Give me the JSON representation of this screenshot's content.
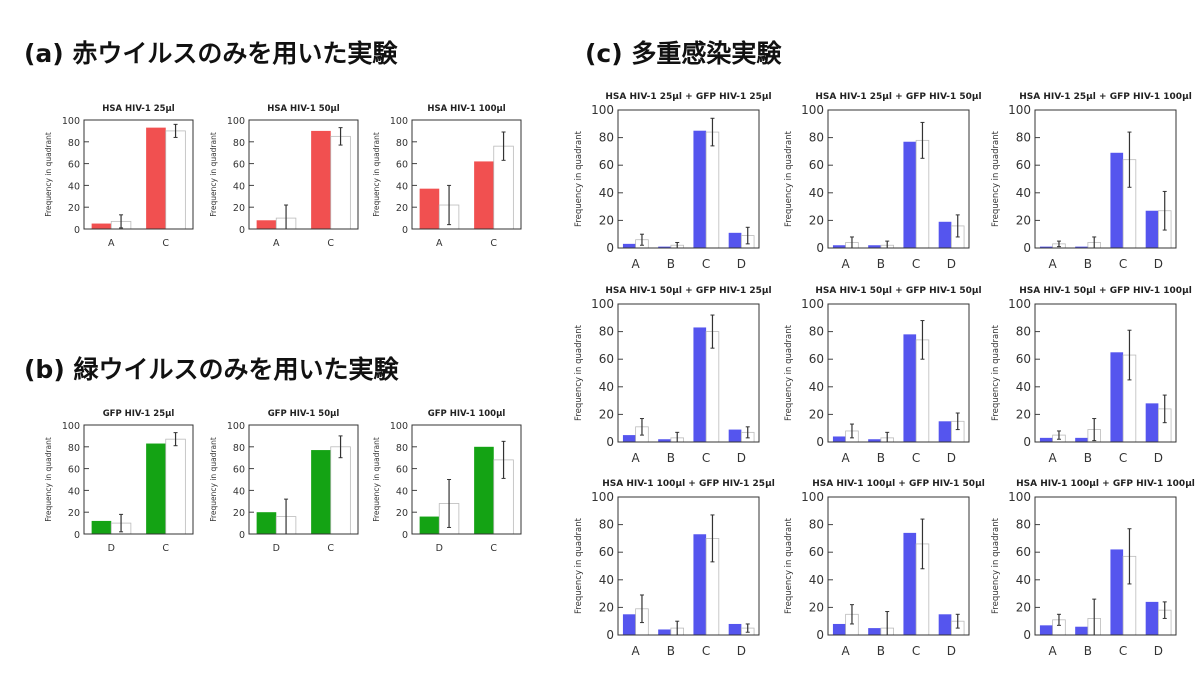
{
  "headings": {
    "a": "(a) 赤ウイルスのみを用いた実験",
    "b": "(b) 緑ウイルスのみを用いた実験",
    "c": "(c) 多重感染実験"
  },
  "colors": {
    "red": "#f15050",
    "green": "#14a314",
    "blue": "#5555ee",
    "white": "#ffffff"
  },
  "chart_data": [
    {
      "id": "a1",
      "type": "bar",
      "title": "HSA HIV-1 25μl",
      "ylabel": "Frequency in quadrant",
      "ylim": [
        0,
        100
      ],
      "yticks": [
        0,
        20,
        40,
        60,
        80,
        100
      ],
      "categories": [
        "A",
        "C"
      ],
      "color": "red",
      "series": [
        {
          "values": [
            5,
            93
          ]
        },
        {
          "values": [
            7,
            90
          ],
          "err": [
            6,
            6
          ]
        }
      ]
    },
    {
      "id": "a2",
      "type": "bar",
      "title": "HSA HIV-1 50μl",
      "ylabel": "Frequency in quadrant",
      "ylim": [
        0,
        100
      ],
      "yticks": [
        0,
        20,
        40,
        60,
        80,
        100
      ],
      "categories": [
        "A",
        "C"
      ],
      "color": "red",
      "series": [
        {
          "values": [
            8,
            90
          ]
        },
        {
          "values": [
            10,
            85
          ],
          "err": [
            12,
            8
          ]
        }
      ]
    },
    {
      "id": "a3",
      "type": "bar",
      "title": "HSA HIV-1 100μl",
      "ylabel": "Frequency in quadrant",
      "ylim": [
        0,
        100
      ],
      "yticks": [
        0,
        20,
        40,
        60,
        80,
        100
      ],
      "categories": [
        "A",
        "C"
      ],
      "color": "red",
      "series": [
        {
          "values": [
            37,
            62
          ]
        },
        {
          "values": [
            22,
            76
          ],
          "err": [
            18,
            13
          ]
        }
      ]
    },
    {
      "id": "b1",
      "type": "bar",
      "title": "GFP HIV-1 25μl",
      "ylabel": "Frequency in quadrant",
      "ylim": [
        0,
        100
      ],
      "yticks": [
        0,
        20,
        40,
        60,
        80,
        100
      ],
      "categories": [
        "D",
        "C"
      ],
      "color": "green",
      "series": [
        {
          "values": [
            12,
            83
          ]
        },
        {
          "values": [
            10,
            87
          ],
          "err": [
            8,
            6
          ]
        }
      ]
    },
    {
      "id": "b2",
      "type": "bar",
      "title": "GFP HIV-1 50μl",
      "ylabel": "Frequency in quadrant",
      "ylim": [
        0,
        100
      ],
      "yticks": [
        0,
        20,
        40,
        60,
        80,
        100
      ],
      "categories": [
        "D",
        "C"
      ],
      "color": "green",
      "series": [
        {
          "values": [
            20,
            77
          ]
        },
        {
          "values": [
            16,
            80
          ],
          "err": [
            16,
            10
          ]
        }
      ]
    },
    {
      "id": "b3",
      "type": "bar",
      "title": "GFP HIV-1 100μl",
      "ylabel": "Frequency in quadrant",
      "ylim": [
        0,
        100
      ],
      "yticks": [
        0,
        20,
        40,
        60,
        80,
        100
      ],
      "categories": [
        "D",
        "C"
      ],
      "color": "green",
      "series": [
        {
          "values": [
            16,
            80
          ]
        },
        {
          "values": [
            28,
            68
          ],
          "err": [
            22,
            17
          ]
        }
      ]
    },
    {
      "id": "c11",
      "type": "bar",
      "title": "HSA HIV-1 25μl + GFP HIV-1 25μl",
      "ylabel": "Frequency in quadrant",
      "ylim": [
        0,
        100
      ],
      "yticks": [
        0,
        20,
        40,
        60,
        80,
        100
      ],
      "categories": [
        "A",
        "B",
        "C",
        "D"
      ],
      "color": "blue",
      "series": [
        {
          "values": [
            3,
            1,
            85,
            11
          ]
        },
        {
          "values": [
            6,
            2,
            84,
            9
          ],
          "err": [
            4,
            2,
            10,
            6
          ]
        }
      ]
    },
    {
      "id": "c12",
      "type": "bar",
      "title": "HSA HIV-1 25μl + GFP HIV-1 50μl",
      "ylabel": "Frequency in quadrant",
      "ylim": [
        0,
        100
      ],
      "yticks": [
        0,
        20,
        40,
        60,
        80,
        100
      ],
      "categories": [
        "A",
        "B",
        "C",
        "D"
      ],
      "color": "blue",
      "series": [
        {
          "values": [
            2,
            2,
            77,
            19
          ]
        },
        {
          "values": [
            4,
            2,
            78,
            16
          ],
          "err": [
            4,
            3,
            13,
            8
          ]
        }
      ]
    },
    {
      "id": "c13",
      "type": "bar",
      "title": "HSA HIV-1 25μl + GFP HIV-1 100μl",
      "ylabel": "Frequency in quadrant",
      "ylim": [
        0,
        100
      ],
      "yticks": [
        0,
        20,
        40,
        60,
        80,
        100
      ],
      "categories": [
        "A",
        "B",
        "C",
        "D"
      ],
      "color": "blue",
      "series": [
        {
          "values": [
            1,
            1,
            69,
            27
          ]
        },
        {
          "values": [
            3,
            4,
            64,
            27
          ],
          "err": [
            2,
            4,
            20,
            14
          ]
        }
      ]
    },
    {
      "id": "c21",
      "type": "bar",
      "title": "HSA HIV-1 50μl + GFP HIV-1 25μl",
      "ylabel": "Frequency in quadrant",
      "ylim": [
        0,
        100
      ],
      "yticks": [
        0,
        20,
        40,
        60,
        80,
        100
      ],
      "categories": [
        "A",
        "B",
        "C",
        "D"
      ],
      "color": "blue",
      "series": [
        {
          "values": [
            5,
            2,
            83,
            9
          ]
        },
        {
          "values": [
            11,
            3,
            80,
            7
          ],
          "err": [
            6,
            4,
            12,
            4
          ]
        }
      ]
    },
    {
      "id": "c22",
      "type": "bar",
      "title": "HSA HIV-1 50μl + GFP HIV-1 50μl",
      "ylabel": "Frequency in quadrant",
      "ylim": [
        0,
        100
      ],
      "yticks": [
        0,
        20,
        40,
        60,
        80,
        100
      ],
      "categories": [
        "A",
        "B",
        "C",
        "D"
      ],
      "color": "blue",
      "series": [
        {
          "values": [
            4,
            2,
            78,
            15
          ]
        },
        {
          "values": [
            8,
            3,
            74,
            15
          ],
          "err": [
            5,
            4,
            14,
            6
          ]
        }
      ]
    },
    {
      "id": "c23",
      "type": "bar",
      "title": "HSA HIV-1 50μl + GFP HIV-1 100μl",
      "ylabel": "Frequency in quadrant",
      "ylim": [
        0,
        100
      ],
      "yticks": [
        0,
        20,
        40,
        60,
        80,
        100
      ],
      "categories": [
        "A",
        "B",
        "C",
        "D"
      ],
      "color": "blue",
      "series": [
        {
          "values": [
            3,
            3,
            65,
            28
          ]
        },
        {
          "values": [
            5,
            9,
            63,
            24
          ],
          "err": [
            3,
            8,
            18,
            10
          ]
        }
      ]
    },
    {
      "id": "c31",
      "type": "bar",
      "title": "HSA HIV-1 100μl + GFP HIV-1 25μl",
      "ylabel": "Frequency in quadrant",
      "ylim": [
        0,
        100
      ],
      "yticks": [
        0,
        20,
        40,
        60,
        80,
        100
      ],
      "categories": [
        "A",
        "B",
        "C",
        "D"
      ],
      "color": "blue",
      "series": [
        {
          "values": [
            15,
            4,
            73,
            8
          ]
        },
        {
          "values": [
            19,
            5,
            70,
            5
          ],
          "err": [
            10,
            5,
            17,
            3
          ]
        }
      ]
    },
    {
      "id": "c32",
      "type": "bar",
      "title": "HSA HIV-1 100μl + GFP HIV-1 50μl",
      "ylabel": "Frequency in quadrant",
      "ylim": [
        0,
        100
      ],
      "yticks": [
        0,
        20,
        40,
        60,
        80,
        100
      ],
      "categories": [
        "A",
        "B",
        "C",
        "D"
      ],
      "color": "blue",
      "series": [
        {
          "values": [
            8,
            5,
            74,
            15
          ]
        },
        {
          "values": [
            15,
            5,
            66,
            10
          ],
          "err": [
            7,
            12,
            18,
            5
          ]
        }
      ]
    },
    {
      "id": "c33",
      "type": "bar",
      "title": "HSA HIV-1 100μl + GFP HIV-1 100μl",
      "ylabel": "Frequency in quadrant",
      "ylim": [
        0,
        100
      ],
      "yticks": [
        0,
        20,
        40,
        60,
        80,
        100
      ],
      "categories": [
        "A",
        "B",
        "C",
        "D"
      ],
      "color": "blue",
      "series": [
        {
          "values": [
            7,
            6,
            62,
            24
          ]
        },
        {
          "values": [
            11,
            12,
            57,
            18
          ],
          "err": [
            4,
            14,
            20,
            6
          ]
        }
      ]
    }
  ]
}
